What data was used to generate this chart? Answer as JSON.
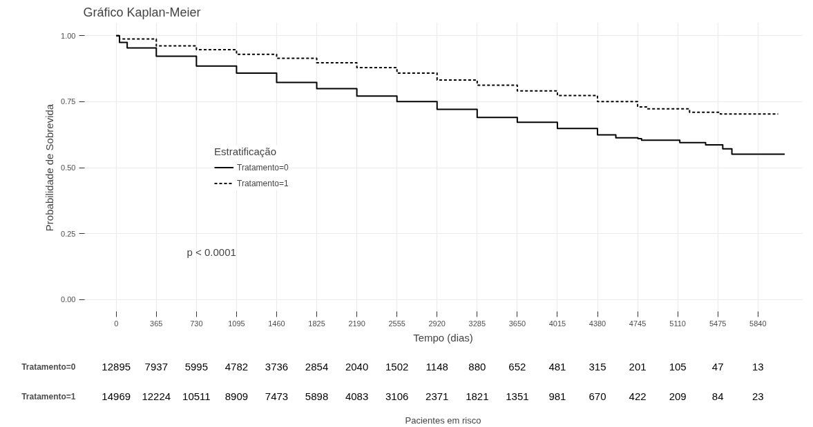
{
  "chart_data": [
    {
      "type": "step",
      "title": "Gráfico Kaplan-Meier",
      "xlabel": "Tempo (dias)",
      "ylabel": "Probabilidade de Sobrevida",
      "legend_title": "Estratificação",
      "legend": "left",
      "grid": true,
      "xlim": [
        -300,
        6250
      ],
      "ylim": [
        -0.05,
        1.05
      ],
      "xticks": [
        0,
        365,
        730,
        1095,
        1460,
        1825,
        2190,
        2555,
        2920,
        3285,
        3650,
        4015,
        4380,
        4745,
        5110,
        5475,
        5840
      ],
      "yticks": [
        {
          "value": 0,
          "label": "0.00"
        },
        {
          "value": 0.25,
          "label": "0.25"
        },
        {
          "value": 0.5,
          "label": "0.50"
        },
        {
          "value": 0.75,
          "label": "0.75"
        },
        {
          "value": 1,
          "label": "1.00"
        }
      ],
      "annotations": [
        "p < 0.0001"
      ],
      "series": [
        {
          "name": "Tratamento=0",
          "color": "#000000",
          "line_style": "solid",
          "x": [
            0,
            30,
            100,
            365,
            730,
            1095,
            1460,
            1825,
            2190,
            2555,
            2920,
            3285,
            3650,
            4015,
            4380,
            4547,
            4748,
            4781,
            5084,
            5129,
            5364,
            5520,
            5603,
            6084
          ],
          "values": [
            1.0,
            0.974,
            0.953,
            0.922,
            0.885,
            0.858,
            0.823,
            0.799,
            0.771,
            0.75,
            0.721,
            0.69,
            0.672,
            0.648,
            0.624,
            0.613,
            0.61,
            0.604,
            0.604,
            0.595,
            0.586,
            0.571,
            0.551,
            0.551
          ]
        },
        {
          "name": "Tratamento=1",
          "color": "#000000",
          "line_style": "dashed",
          "x": [
            0,
            30,
            365,
            730,
            1095,
            1460,
            1825,
            2190,
            2555,
            2920,
            3285,
            3650,
            4015,
            4380,
            4745,
            4827,
            5218,
            5498,
            6024
          ],
          "values": [
            1.0,
            0.987,
            0.961,
            0.947,
            0.929,
            0.914,
            0.897,
            0.879,
            0.858,
            0.832,
            0.812,
            0.791,
            0.773,
            0.75,
            0.73,
            0.723,
            0.71,
            0.703,
            0.703
          ]
        }
      ]
    },
    {
      "type": "heatmap",
      "xlabel": "Pacientes em risco",
      "data_labels": true,
      "categories": [
        null,
        null,
        null,
        null,
        null,
        null,
        null,
        null,
        null,
        null,
        null,
        null,
        null,
        null,
        null,
        null,
        null
      ],
      "y_categories": [
        "Tratamento=0",
        "Tratamento=1"
      ],
      "cells": [
        [
          12895,
          7937,
          5995,
          4782,
          3736,
          2854,
          2040,
          1502,
          1148,
          880,
          652,
          481,
          315,
          201,
          105,
          47,
          13
        ],
        [
          14969,
          12224,
          10511,
          8909,
          7473,
          5898,
          4083,
          3106,
          2371,
          1821,
          1351,
          981,
          670,
          422,
          209,
          84,
          23
        ]
      ]
    }
  ]
}
